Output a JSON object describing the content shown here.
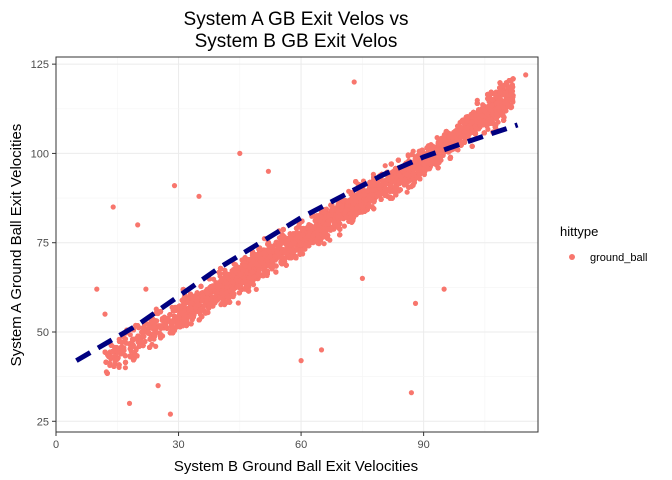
{
  "chart_data": {
    "type": "scatter",
    "title_lines": [
      "System A GB Exit Velos vs",
      "System B GB Exit Velos"
    ],
    "xlabel": "System B Ground Ball Exit Velocities",
    "ylabel": "System A Ground Ball Exit Velocities",
    "xlim": [
      0,
      118
    ],
    "ylim": [
      22,
      127
    ],
    "x_ticks": [
      0,
      30,
      60,
      90
    ],
    "y_ticks": [
      25,
      50,
      75,
      100,
      125
    ],
    "grid": true,
    "legend": {
      "title": "hittype",
      "position": "right",
      "entries": [
        "ground_ball"
      ]
    },
    "series": [
      {
        "name": "ground_ball",
        "color": "#F8766D",
        "point_count": 9000,
        "distribution": "cloud bounded between the lines y = x + 8 and y = 0.72x + 33; dense core x 30–110, y 45–118",
        "outliers": [
          [
            14,
            85
          ],
          [
            20,
            80
          ],
          [
            73,
            120
          ],
          [
            87,
            33
          ],
          [
            28,
            27
          ],
          [
            18,
            30
          ],
          [
            115,
            122
          ],
          [
            24,
            48
          ],
          [
            22,
            62
          ],
          [
            29,
            91
          ],
          [
            45,
            100
          ],
          [
            75,
            65
          ],
          [
            88,
            58
          ],
          [
            95,
            62
          ],
          [
            60,
            42
          ],
          [
            10,
            62
          ],
          [
            12,
            55
          ],
          [
            17,
            40
          ],
          [
            25,
            35
          ],
          [
            65,
            45
          ],
          [
            52,
            95
          ],
          [
            35,
            88
          ]
        ]
      }
    ],
    "trend_line": {
      "style": "dashed",
      "color": "#000080",
      "points": [
        [
          5,
          42
        ],
        [
          20,
          52
        ],
        [
          30,
          60
        ],
        [
          40,
          68
        ],
        [
          50,
          75
        ],
        [
          60,
          82
        ],
        [
          70,
          88
        ],
        [
          80,
          94
        ],
        [
          90,
          99
        ],
        [
          100,
          103
        ],
        [
          113,
          108
        ]
      ]
    }
  }
}
